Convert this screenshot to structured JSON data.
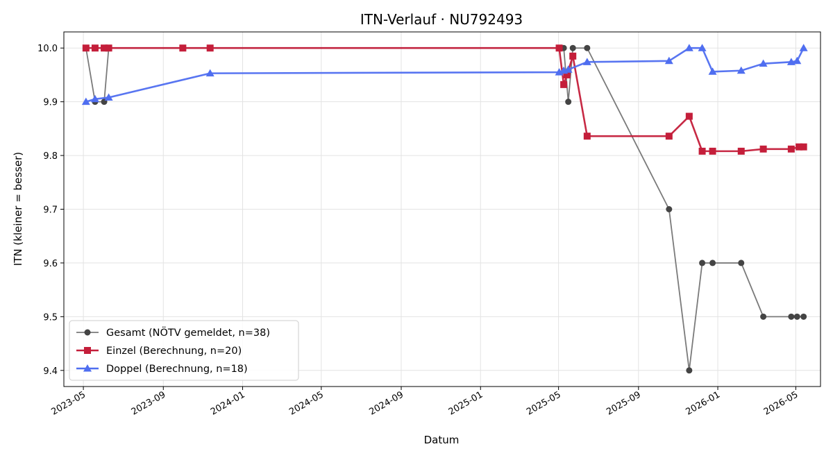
{
  "chart_data": {
    "type": "line",
    "title": "ITN-Verlauf · NU792493",
    "xlabel": "Datum",
    "ylabel": "ITN  (kleiner = besser)",
    "xlim": [
      "2023-04-01",
      "2026-06-08"
    ],
    "ylim": [
      9.37,
      10.03
    ],
    "x_ticks": [
      "2023-05",
      "2023-09",
      "2024-01",
      "2024-05",
      "2024-09",
      "2025-01",
      "2025-05",
      "2025-09",
      "2026-01",
      "2026-05"
    ],
    "y_ticks": [
      "9.4",
      "9.5",
      "9.6",
      "9.7",
      "9.8",
      "9.9",
      "10.0"
    ],
    "grid": true,
    "legend_position": "bottom-left",
    "series": [
      {
        "name": "Gesamt (NÖTV gemeldet, n=38)",
        "color": "#444444",
        "line_color": "#7a7a7a",
        "marker": "circle",
        "points": [
          [
            "2023-05-05",
            10.0
          ],
          [
            "2023-05-19",
            9.9
          ],
          [
            "2023-06-02",
            9.9
          ],
          [
            "2023-06-09",
            10.0
          ],
          [
            "2025-05-02",
            10.0
          ],
          [
            "2025-05-09",
            10.0
          ],
          [
            "2025-05-16",
            9.9
          ],
          [
            "2025-05-23",
            10.0
          ],
          [
            "2025-06-14",
            10.0
          ],
          [
            "2025-10-18",
            9.7
          ],
          [
            "2025-11-18",
            9.4
          ],
          [
            "2025-12-08",
            9.6
          ],
          [
            "2025-12-24",
            9.6
          ],
          [
            "2026-02-06",
            9.6
          ],
          [
            "2026-03-12",
            9.5
          ],
          [
            "2026-04-24",
            9.5
          ],
          [
            "2026-05-03",
            9.5
          ],
          [
            "2026-05-13",
            9.5
          ]
        ]
      },
      {
        "name": "Einzel (Berechnung, n=20)",
        "color": "#c41e3a",
        "line_color": "#c41e3a",
        "marker": "square",
        "points": [
          [
            "2023-05-05",
            10.0
          ],
          [
            "2023-05-19",
            10.0
          ],
          [
            "2023-06-02",
            10.0
          ],
          [
            "2023-06-09",
            10.0
          ],
          [
            "2023-10-01",
            10.0
          ],
          [
            "2023-11-12",
            10.0
          ],
          [
            "2025-05-02",
            10.0
          ],
          [
            "2025-05-09",
            9.932
          ],
          [
            "2025-05-14",
            9.95
          ],
          [
            "2025-05-23",
            9.985
          ],
          [
            "2025-06-14",
            9.836
          ],
          [
            "2025-10-18",
            9.836
          ],
          [
            "2025-11-18",
            9.873
          ],
          [
            "2025-12-08",
            9.808
          ],
          [
            "2025-12-24",
            9.808
          ],
          [
            "2026-02-06",
            9.808
          ],
          [
            "2026-03-12",
            9.812
          ],
          [
            "2026-04-24",
            9.812
          ],
          [
            "2026-05-06",
            9.816
          ],
          [
            "2026-05-13",
            9.816
          ]
        ]
      },
      {
        "name": "Doppel (Berechnung, n=18)",
        "color": "#4f6ef0",
        "line_color": "#4f6ef0",
        "marker": "triangle",
        "points": [
          [
            "2023-05-05",
            9.9
          ],
          [
            "2023-05-19",
            9.905
          ],
          [
            "2023-06-09",
            9.908
          ],
          [
            "2023-11-12",
            9.953
          ],
          [
            "2025-05-02",
            9.955
          ],
          [
            "2025-05-09",
            9.958
          ],
          [
            "2025-05-16",
            9.96
          ],
          [
            "2025-06-14",
            9.974
          ],
          [
            "2025-10-18",
            9.976
          ],
          [
            "2025-11-18",
            10.0
          ],
          [
            "2025-12-08",
            10.0
          ],
          [
            "2025-12-24",
            9.956
          ],
          [
            "2026-02-06",
            9.958
          ],
          [
            "2026-03-12",
            9.971
          ],
          [
            "2026-04-24",
            9.974
          ],
          [
            "2026-05-03",
            9.976
          ],
          [
            "2026-05-13",
            10.0
          ]
        ]
      }
    ]
  }
}
